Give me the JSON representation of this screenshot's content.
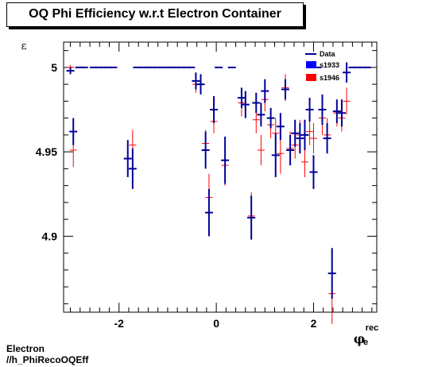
{
  "chart_data": {
    "type": "scatter",
    "title": "OQ Phi Efficiency w.r.t Electron Container",
    "ylabel": "ε",
    "xlabel_main": "φ",
    "xlabel_sup": "rec",
    "xlabel_sub": "e",
    "xlim": [
      -3.14,
      3.3
    ],
    "ylim": [
      4.855,
      5.015
    ],
    "xticks": [
      -2,
      0,
      2
    ],
    "yticks": [
      4.9,
      4.95,
      5
    ],
    "xtick_labels": [
      "-2",
      "0",
      "2"
    ],
    "ytick_labels": [
      "4.9",
      "4.95",
      "5"
    ],
    "legend": [
      "Data",
      "s1933",
      "s1946"
    ],
    "legend_position": "top-right",
    "colors": {
      "data": "#000099",
      "s1933": "#0000ff",
      "s1946": "#ff0000"
    },
    "series": [
      {
        "name": "s1946",
        "x": [
          -3.0,
          -2.94,
          -2.82,
          -2.72,
          -2.52,
          -2.42,
          -2.32,
          -2.22,
          -2.12,
          -1.82,
          -1.72,
          -1.63,
          -1.52,
          -1.42,
          -1.33,
          -1.22,
          -1.12,
          -1.02,
          -0.92,
          -0.82,
          -0.72,
          -0.62,
          -0.52,
          -0.42,
          -0.32,
          -0.22,
          -0.15,
          -0.05,
          0.05,
          0.18,
          0.32,
          0.52,
          0.6,
          0.72,
          0.82,
          0.92,
          1.0,
          1.12,
          1.22,
          1.32,
          1.42,
          1.52,
          1.62,
          1.72,
          1.82,
          1.92,
          2.0,
          2.08,
          2.18,
          2.28,
          2.38,
          2.48,
          2.58,
          2.68,
          2.8,
          2.9,
          3.0,
          3.1
        ],
        "values": [
          5.0,
          4.951,
          5.0,
          5.0,
          5.0,
          5.0,
          5.0,
          5.0,
          5.0,
          4.946,
          4.954,
          5.0,
          5.0,
          5.0,
          5.0,
          5.0,
          5.0,
          5.0,
          5.0,
          5.0,
          5.0,
          5.0,
          5.0,
          4.99,
          4.99,
          4.955,
          4.923,
          4.968,
          5.0,
          4.942,
          5.0,
          4.979,
          4.978,
          4.912,
          4.969,
          4.951,
          4.981,
          4.966,
          4.961,
          4.949,
          4.988,
          4.952,
          4.954,
          4.96,
          4.944,
          4.962,
          4.958,
          5.0,
          4.97,
          4.96,
          4.866,
          4.973,
          4.97,
          4.98,
          5.0,
          5.0,
          5.0,
          5.0
        ],
        "errors": [
          0.0015,
          0.01,
          0.0008,
          0.0008,
          0.0008,
          0.0008,
          0.0008,
          0.0008,
          0.0008,
          0.01,
          0.009,
          0.0008,
          0.0008,
          0.0008,
          0.0008,
          0.0008,
          0.0008,
          0.0008,
          0.0008,
          0.0008,
          0.0008,
          0.0008,
          0.0008,
          0.005,
          0.005,
          0.008,
          0.014,
          0.007,
          0.0008,
          0.012,
          0.0008,
          0.008,
          0.007,
          0.014,
          0.008,
          0.009,
          0.007,
          0.008,
          0.009,
          0.012,
          0.008,
          0.01,
          0.008,
          0.009,
          0.009,
          0.008,
          0.009,
          0.0008,
          0.01,
          0.01,
          0.018,
          0.008,
          0.008,
          0.008,
          0.0008,
          0.0008,
          0.0008,
          0.0008
        ]
      },
      {
        "name": "s1933",
        "x": [
          -3.0,
          -2.94,
          -2.82,
          -2.72,
          -2.52,
          -2.42,
          -2.32,
          -2.22,
          -2.12,
          -1.82,
          -1.72,
          -1.63,
          -1.52,
          -1.42,
          -1.33,
          -1.22,
          -1.12,
          -1.02,
          -0.92,
          -0.82,
          -0.72,
          -0.62,
          -0.52,
          -0.42,
          -0.32,
          -0.22,
          -0.15,
          -0.05,
          0.05,
          0.18,
          0.32,
          0.52,
          0.6,
          0.72,
          0.82,
          0.92,
          1.0,
          1.12,
          1.22,
          1.32,
          1.42,
          1.52,
          1.62,
          1.72,
          1.82,
          1.92,
          2.0,
          2.08,
          2.18,
          2.28,
          2.38,
          2.48,
          2.58,
          2.68,
          2.8,
          2.9,
          3.0,
          3.1
        ],
        "values": [
          4.998,
          4.962,
          5.0,
          5.0,
          5.0,
          5.0,
          5.0,
          5.0,
          5.0,
          4.946,
          4.94,
          5.0,
          5.0,
          5.0,
          5.0,
          5.0,
          5.0,
          5.0,
          5.0,
          5.0,
          5.0,
          5.0,
          5.0,
          4.992,
          4.99,
          4.951,
          4.914,
          4.975,
          5.0,
          4.945,
          5.0,
          4.982,
          4.978,
          4.911,
          4.979,
          4.972,
          4.986,
          4.97,
          4.948,
          4.965,
          4.987,
          4.951,
          4.961,
          4.958,
          4.96,
          4.975,
          4.938,
          5.0,
          4.975,
          4.958,
          4.878,
          4.974,
          4.973,
          4.997,
          5.0,
          5.0,
          5.0,
          5.0
        ],
        "errors": [
          0.002,
          0.008,
          0.0008,
          0.0008,
          0.0008,
          0.0008,
          0.0008,
          0.0008,
          0.0008,
          0.011,
          0.012,
          0.0008,
          0.0008,
          0.0008,
          0.0008,
          0.0008,
          0.0008,
          0.0008,
          0.0008,
          0.0008,
          0.0008,
          0.0008,
          0.0008,
          0.005,
          0.006,
          0.011,
          0.014,
          0.008,
          0.0008,
          0.014,
          0.0008,
          0.006,
          0.008,
          0.013,
          0.006,
          0.007,
          0.007,
          0.006,
          0.013,
          0.008,
          0.006,
          0.009,
          0.008,
          0.009,
          0.009,
          0.007,
          0.01,
          0.0008,
          0.009,
          0.009,
          0.015,
          0.007,
          0.008,
          0.006,
          0.0008,
          0.0008,
          0.0008,
          0.0008
        ]
      }
    ]
  },
  "footer": {
    "line1": "Electron",
    "line2": "//h_PhiRecoOQEff"
  }
}
